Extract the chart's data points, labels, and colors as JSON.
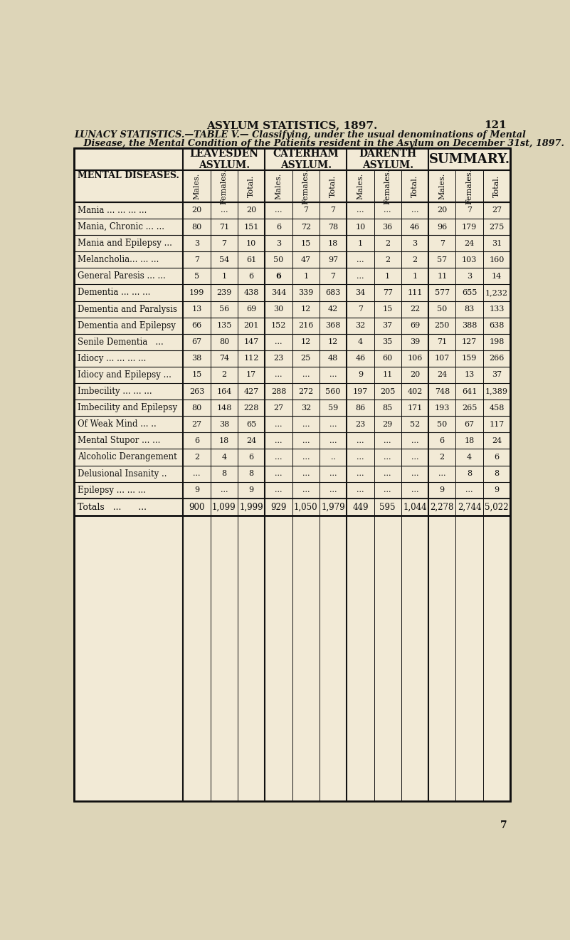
{
  "page_title": "ASYLUM STATISTICS, 1897.",
  "page_number": "121",
  "subtitle1": "LUNACY STATISTICS.—TABLE V.— Classifying, under the usual denominations of Mental",
  "subtitle2": "   Disease, the Mental Condition of the Patients resident in the Asylum on December 31st, 1897.",
  "footer_number": "7",
  "section_headers": [
    "LEAVESDEN\nASYLUM.",
    "CATERHAM\nASYLUM.",
    "DARENTH\nASYLUM.",
    "SUMMARY."
  ],
  "col_headers": [
    "Males.",
    "Females.",
    "Total.",
    "Males.",
    "Females.",
    "Total.",
    "Males.",
    "Females.",
    "Total.",
    "Males.",
    "Females.",
    "Total."
  ],
  "row_label_header": "MENTAL DISEASES.",
  "diseases": [
    "Mania ... ... ... ...",
    "Mania, Chronic ... ...",
    "Mania and Epilepsy ...",
    "Melancholia... ... ...",
    "General Paresis ... ...",
    "Dementia ... ... ...",
    "Dementia and Paralysis",
    "Dementia and Epilepsy",
    "Senile Dementia   ...",
    "Idiocy ... ... ... ...",
    "Idiocy and Epilepsy ...",
    "Imbecility ... ... ...",
    "Imbecility and Epilepsy",
    "Of Weak Mind ... ..",
    "Mental Stupor ... ...",
    "Alcoholic Derangement",
    "Delusional Insanity ..",
    "Epilepsy ... ... ..."
  ],
  "data": [
    [
      "20",
      "...",
      "20",
      "...",
      "7",
      "7",
      "...",
      "...",
      "...",
      "20",
      "7",
      "27"
    ],
    [
      "80",
      "71",
      "151",
      "6",
      "72",
      "78",
      "10",
      "36",
      "46",
      "96",
      "179",
      "275"
    ],
    [
      "3",
      "7",
      "10",
      "3",
      "15",
      "18",
      "1",
      "2",
      "3",
      "7",
      "24",
      "31"
    ],
    [
      "7",
      "54",
      "61",
      "50",
      "47",
      "97",
      "...",
      "2",
      "2",
      "57",
      "103",
      "160"
    ],
    [
      "5",
      "1",
      "6",
      "6",
      "1",
      "7",
      "...",
      "1",
      "1",
      "11",
      "3",
      "14"
    ],
    [
      "199",
      "239",
      "438",
      "344",
      "339",
      "683",
      "34",
      "77",
      "111",
      "577",
      "655",
      "1,232"
    ],
    [
      "13",
      "56",
      "69",
      "30",
      "12",
      "42",
      "7",
      "15",
      "22",
      "50",
      "83",
      "133"
    ],
    [
      "66",
      "135",
      "201",
      "152",
      "216",
      "368",
      "32",
      "37",
      "69",
      "250",
      "388",
      "638"
    ],
    [
      "67",
      "80",
      "147",
      "...",
      "12",
      "12",
      "4",
      "35",
      "39",
      "71",
      "127",
      "198"
    ],
    [
      "38",
      "74",
      "112",
      "23",
      "25",
      "48",
      "46",
      "60",
      "106",
      "107",
      "159",
      "266"
    ],
    [
      "15",
      "2",
      "17",
      "...",
      "...",
      "...",
      "9",
      "11",
      "20",
      "24",
      "13",
      "37"
    ],
    [
      "263",
      "164",
      "427",
      "288",
      "272",
      "560",
      "197",
      "205",
      "402",
      "748",
      "641",
      "1,389"
    ],
    [
      "80",
      "148",
      "228",
      "27",
      "32",
      "59",
      "86",
      "85",
      "171",
      "193",
      "265",
      "458"
    ],
    [
      "27",
      "38",
      "65",
      "...",
      "...",
      "...",
      "23",
      "29",
      "52",
      "50",
      "67",
      "117"
    ],
    [
      "6",
      "18",
      "24",
      "...",
      "...",
      "...",
      "...",
      "...",
      "...",
      "6",
      "18",
      "24"
    ],
    [
      "2",
      "4",
      "6",
      "...",
      "...",
      "..",
      "...",
      "...",
      "...",
      "2",
      "4",
      "6"
    ],
    [
      "...",
      "8",
      "8",
      "...",
      "...",
      "...",
      "...",
      "...",
      "...",
      "...",
      "8",
      "8"
    ],
    [
      "9",
      "...",
      "9",
      "...",
      "...",
      "...",
      "...",
      "...",
      "...",
      "9",
      "...",
      "9"
    ]
  ],
  "totals": [
    "900",
    "1,099",
    "1,999",
    "929",
    "1,050",
    "1,979",
    "449",
    "595",
    "1,044",
    "2,278",
    "2,744",
    "5,022"
  ],
  "totals_label": "Totals   ...      ...",
  "bg_color": "#ddd5b8",
  "table_bg": "#f2ead6",
  "line_color": "#111111",
  "text_color": "#111111"
}
